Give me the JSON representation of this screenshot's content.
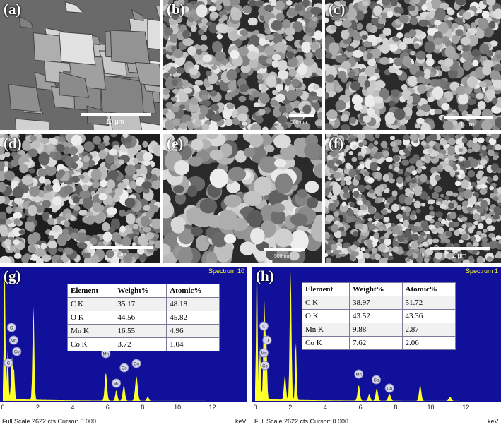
{
  "panels": {
    "a": {
      "label": "(a)",
      "scale": "10 μm"
    },
    "b": {
      "label": "(b)",
      "scale": "500 nm"
    },
    "c": {
      "label": "(c)",
      "scale": "1 μm"
    },
    "d": {
      "label": "(d)",
      "scale": "2 μm"
    },
    "e": {
      "label": "(e)",
      "scale": "500 nm"
    },
    "f": {
      "label": "(f)",
      "scale": "2 μm"
    }
  },
  "edx": [
    {
      "label": "(g)",
      "spectrum": "Spectrum 10",
      "footer": "Full Scale 2622 cts Cursor: 0.000",
      "unit": "keV",
      "ticks": [
        "0",
        "2",
        "4",
        "6",
        "8",
        "10",
        "12"
      ],
      "headers": [
        "Element",
        "Weight%",
        "Atomic%"
      ],
      "rows": [
        [
          "C K",
          "35.17",
          "48.18"
        ],
        [
          "O K",
          "44.56",
          "45.82"
        ],
        [
          "Mn K",
          "16.55",
          "4.96"
        ],
        [
          "Co K",
          "3.72",
          "1.04"
        ]
      ],
      "peak_labels": [
        "C",
        "O",
        "Mn",
        "Co",
        "Mn",
        "Co",
        "Mn",
        "Co"
      ]
    },
    {
      "label": "(h)",
      "spectrum": "Spectrum 1",
      "footer": "Full Scale 2622 cts Cursor: 0.000",
      "unit": "keV",
      "ticks": [
        "0",
        "2",
        "4",
        "6",
        "8",
        "10",
        "12"
      ],
      "headers": [
        "Element",
        "Weight%",
        "Atomic%"
      ],
      "rows": [
        [
          "C K",
          "38.97",
          "51.72"
        ],
        [
          "O K",
          "43.52",
          "43.36"
        ],
        [
          "Mn K",
          "9.88",
          "2.87"
        ],
        [
          "Co K",
          "7.62",
          "2.06"
        ]
      ],
      "peak_labels": [
        "C",
        "O",
        "Mn",
        "Co",
        "Mn",
        "Co",
        "Co"
      ]
    }
  ],
  "colors": {
    "edx_background": "#10109a",
    "spectrum_fill": "#ffff2a",
    "text": "#ffffff"
  }
}
